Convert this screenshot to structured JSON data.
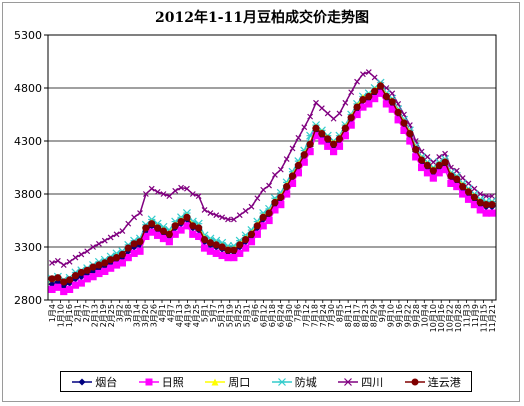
{
  "chart_data": {
    "type": "line",
    "title": "2012年1-11月豆柏成交价走势图",
    "y_ticks": [
      "5300",
      "4800",
      "4300",
      "3800",
      "3300",
      "2800"
    ],
    "ylim": [
      2800,
      5300
    ],
    "x_tick_labels": [
      "1月4",
      "1月10",
      "1月16",
      "2月1",
      "2月7",
      "2月13",
      "2月19",
      "2月25",
      "3月2",
      "3月8",
      "3月14",
      "3月20",
      "3月26",
      "4月1",
      "4月7",
      "4月13",
      "4月19",
      "4月25",
      "5月1",
      "5月7",
      "5月13",
      "5月19",
      "5月25",
      "5月31",
      "6月6",
      "6月12",
      "6月18",
      "6月24",
      "6月30",
      "7月6",
      "7月12",
      "7月18",
      "7月24",
      "7月30",
      "8月5",
      "8月11",
      "8月17",
      "8月23",
      "8月29",
      "9月4",
      "9月10",
      "9月16",
      "9月22",
      "9月28",
      "10月4",
      "10月10",
      "10月16",
      "10月22",
      "10月28",
      "11月3",
      "11月9",
      "11月15",
      "11月21"
    ],
    "grid": "horizontal",
    "series": [
      {
        "name": "烟台",
        "color": "#000080",
        "marker": "diamond",
        "values": [
          2950,
          2970,
          2930,
          2960,
          3000,
          3020,
          3050,
          3070,
          3100,
          3120,
          3150,
          3180,
          3200,
          3260,
          3300,
          3320,
          3450,
          3500,
          3460,
          3430,
          3400,
          3480,
          3520,
          3560,
          3480,
          3460,
          3350,
          3320,
          3300,
          3280,
          3250,
          3250,
          3300,
          3350,
          3400,
          3480,
          3560,
          3600,
          3700,
          3750,
          3850,
          3950,
          4050,
          4150,
          4250,
          4400,
          4350,
          4300,
          4250,
          4300,
          4400,
          4500,
          4600,
          4680,
          4700,
          4750,
          4800,
          4700,
          4650,
          4550,
          4450,
          4350,
          4200,
          4100,
          4050,
          4000,
          4050,
          4080,
          3950,
          3920,
          3850,
          3800,
          3750,
          3700,
          3680,
          3680
        ]
      },
      {
        "name": "日照",
        "color": "#FF00FF",
        "marker": "square",
        "values": [
          2900,
          2920,
          2880,
          2900,
          2940,
          2960,
          3000,
          3020,
          3050,
          3070,
          3100,
          3130,
          3150,
          3200,
          3240,
          3260,
          3400,
          3440,
          3410,
          3380,
          3350,
          3420,
          3460,
          3500,
          3420,
          3400,
          3290,
          3260,
          3240,
          3220,
          3200,
          3200,
          3240,
          3290,
          3350,
          3420,
          3500,
          3550,
          3650,
          3700,
          3800,
          3900,
          4000,
          4100,
          4200,
          4350,
          4300,
          4250,
          4200,
          4250,
          4350,
          4450,
          4550,
          4620,
          4650,
          4700,
          4750,
          4650,
          4600,
          4500,
          4400,
          4300,
          4150,
          4050,
          4000,
          3950,
          4000,
          4030,
          3900,
          3870,
          3800,
          3750,
          3700,
          3650,
          3620,
          3620
        ]
      },
      {
        "name": "周口",
        "color": "#FFFF00",
        "marker": "triangle",
        "values": [
          2980,
          3000,
          2960,
          2990,
          3030,
          3050,
          3080,
          3100,
          3130,
          3150,
          3180,
          3210,
          3230,
          3290,
          3330,
          3350,
          3480,
          3530,
          3490,
          3460,
          3430,
          3510,
          3550,
          3590,
          3510,
          3490,
          3380,
          3350,
          3330,
          3310,
          3280,
          3280,
          3330,
          3380,
          3430,
          3510,
          3590,
          3630,
          3730,
          3780,
          3880,
          3980,
          4080,
          4180,
          4280,
          4430,
          4380,
          4330,
          4280,
          4330,
          4430,
          4530,
          4630,
          4710,
          4730,
          4780,
          4830,
          4730,
          4680,
          4580,
          4480,
          4380,
          4230,
          4130,
          4080,
          4030,
          4080,
          4110,
          3980,
          3950,
          3880,
          3830,
          3780,
          3730,
          3710,
          3710
        ]
      },
      {
        "name": "防城",
        "color": "#33CCCC",
        "marker": "star",
        "values": [
          3000,
          3020,
          2990,
          3010,
          3060,
          3080,
          3100,
          3130,
          3160,
          3180,
          3210,
          3240,
          3260,
          3320,
          3360,
          3380,
          3510,
          3560,
          3520,
          3490,
          3460,
          3540,
          3580,
          3620,
          3540,
          3520,
          3410,
          3380,
          3360,
          3340,
          3310,
          3310,
          3360,
          3410,
          3460,
          3540,
          3620,
          3660,
          3760,
          3810,
          3910,
          4010,
          4110,
          4210,
          4350,
          4450,
          4400,
          4350,
          4300,
          4350,
          4450,
          4550,
          4650,
          4720,
          4750,
          4800,
          4850,
          4750,
          4700,
          4600,
          4500,
          4400,
          4250,
          4150,
          4100,
          4050,
          4100,
          4130,
          4000,
          3970,
          3900,
          3850,
          3800,
          3750,
          3730,
          3730
        ]
      },
      {
        "name": "四川",
        "color": "#800080",
        "marker": "x",
        "values": [
          3150,
          3170,
          3130,
          3160,
          3200,
          3230,
          3260,
          3300,
          3330,
          3360,
          3390,
          3420,
          3450,
          3520,
          3580,
          3620,
          3800,
          3850,
          3820,
          3800,
          3780,
          3830,
          3860,
          3850,
          3800,
          3780,
          3650,
          3620,
          3600,
          3580,
          3560,
          3560,
          3600,
          3640,
          3680,
          3760,
          3840,
          3880,
          3980,
          4030,
          4130,
          4230,
          4330,
          4430,
          4530,
          4660,
          4610,
          4560,
          4510,
          4560,
          4660,
          4760,
          4860,
          4930,
          4950,
          4900,
          4850,
          4800,
          4750,
          4650,
          4550,
          4450,
          4300,
          4200,
          4150,
          4100,
          4150,
          4180,
          4050,
          4020,
          3950,
          3900,
          3850,
          3800,
          3780,
          3780
        ]
      },
      {
        "name": "连云港",
        "color": "#800000",
        "marker": "circle",
        "values": [
          3000,
          3010,
          2970,
          2990,
          3030,
          3060,
          3080,
          3110,
          3130,
          3150,
          3180,
          3200,
          3230,
          3290,
          3330,
          3350,
          3480,
          3520,
          3480,
          3450,
          3420,
          3500,
          3540,
          3580,
          3500,
          3480,
          3370,
          3340,
          3320,
          3300,
          3270,
          3270,
          3320,
          3370,
          3420,
          3500,
          3580,
          3620,
          3720,
          3770,
          3870,
          3970,
          4070,
          4170,
          4270,
          4420,
          4370,
          4320,
          4270,
          4320,
          4420,
          4520,
          4620,
          4690,
          4720,
          4770,
          4820,
          4720,
          4670,
          4570,
          4470,
          4370,
          4220,
          4120,
          4070,
          4020,
          4070,
          4100,
          3970,
          3940,
          3870,
          3820,
          3770,
          3720,
          3700,
          3700
        ]
      }
    ],
    "legend": "bottom"
  },
  "legend_items": [
    "烟台",
    "日照",
    "周口",
    "防城",
    "四川",
    "连云港"
  ]
}
